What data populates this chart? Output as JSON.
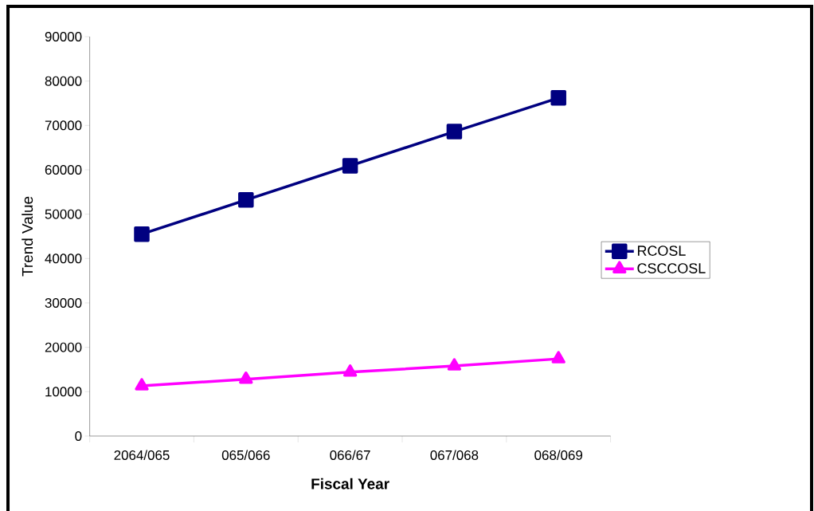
{
  "chart_data": {
    "type": "line",
    "xlabel": "Fiscal Year",
    "ylabel": "Trend Value",
    "categories": [
      "2064/065",
      "065/066",
      "066/67",
      "067/068",
      "068/069"
    ],
    "series": [
      {
        "name": "RCOSL",
        "color": "#000080",
        "marker": "square",
        "values": [
          45500,
          53200,
          60900,
          68600,
          76200
        ]
      },
      {
        "name": "CSCCOSL",
        "color": "#ff00ff",
        "marker": "triangle",
        "values": [
          11300,
          12800,
          14400,
          15800,
          17400
        ]
      }
    ],
    "ylim": [
      0,
      90000
    ],
    "yticks": [
      0,
      10000,
      20000,
      30000,
      40000,
      50000,
      60000,
      70000,
      80000,
      90000
    ],
    "grid": false,
    "legend": "right",
    "line_style": "solid"
  }
}
